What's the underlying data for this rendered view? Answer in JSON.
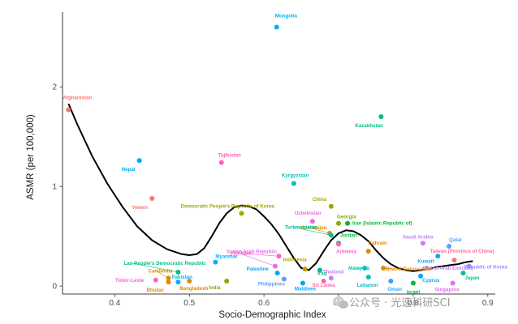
{
  "chart_data": {
    "type": "scatter",
    "xlabel": "Socio-Demographic Index",
    "ylabel": "ASMR (per 100,000)",
    "xlim": [
      0.33,
      0.91
    ],
    "ylim": [
      -0.08,
      2.75
    ],
    "x_ticks": [
      0.4,
      0.5,
      0.6,
      0.7,
      0.8,
      0.9
    ],
    "x_tick_labels": [
      "0.4",
      "0.5",
      "0.6",
      "0.7",
      "0.8",
      "0.9"
    ],
    "y_ticks": [
      0,
      1,
      2
    ],
    "y_tick_labels": [
      "0",
      "1",
      "2"
    ],
    "grid": false,
    "legend": "none",
    "points": [
      {
        "name": "Afghanistan",
        "x": 0.338,
        "y": 1.77,
        "color": "#F8766D"
      },
      {
        "name": "Mongolia",
        "x": 0.617,
        "y": 2.6,
        "color": "#00B0F6"
      },
      {
        "name": "Kazakhstan",
        "x": 0.757,
        "y": 1.7,
        "color": "#00BF7D"
      },
      {
        "name": "Nepal",
        "x": 0.433,
        "y": 1.26,
        "color": "#00A9FF"
      },
      {
        "name": "Tajikistan",
        "x": 0.543,
        "y": 1.24,
        "color": "#FF62BC"
      },
      {
        "name": "Kyrgyzstan",
        "x": 0.64,
        "y": 1.03,
        "color": "#00BFC4"
      },
      {
        "name": "Yemen",
        "x": 0.45,
        "y": 0.88,
        "color": "#F8766D"
      },
      {
        "name": "China",
        "x": 0.69,
        "y": 0.8,
        "color": "#A3A500"
      },
      {
        "name": "Democratic People's Republic of Korea",
        "x": 0.57,
        "y": 0.73,
        "color": "#A3A500"
      },
      {
        "name": "Uzbekistan",
        "x": 0.665,
        "y": 0.65,
        "color": "#F564E3"
      },
      {
        "name": "Georgia",
        "x": 0.7,
        "y": 0.63,
        "color": "#7CAE00"
      },
      {
        "name": "Iran (Islamic Republic of)",
        "x": 0.712,
        "y": 0.63,
        "color": "#00BA38"
      },
      {
        "name": "Azerbaijan",
        "x": 0.688,
        "y": 0.53,
        "color": "#E58700"
      },
      {
        "name": "Turkmenistan",
        "x": 0.69,
        "y": 0.51,
        "color": "#00C19F"
      },
      {
        "name": "Jordan",
        "x": 0.7,
        "y": 0.43,
        "color": "#00BA38"
      },
      {
        "name": "Saudi Arabia",
        "x": 0.813,
        "y": 0.43,
        "color": "#C77CFF"
      },
      {
        "name": "Qatar",
        "x": 0.848,
        "y": 0.4,
        "color": "#619CFF"
      },
      {
        "name": "Armenia",
        "x": 0.7,
        "y": 0.42,
        "color": "#FD61D1"
      },
      {
        "name": "Bahrain",
        "x": 0.74,
        "y": 0.35,
        "color": "#DE8C00"
      },
      {
        "name": "Viet Nam",
        "x": 0.62,
        "y": 0.3,
        "color": "#FF64B0"
      },
      {
        "name": "Syrian Arab Republic",
        "x": 0.615,
        "y": 0.2,
        "color": "#E76BF3"
      },
      {
        "name": "Kuwait",
        "x": 0.833,
        "y": 0.3,
        "color": "#00B0F6"
      },
      {
        "name": "Taiwan (Province of China)",
        "x": 0.855,
        "y": 0.26,
        "color": "#FF6C91"
      },
      {
        "name": "Indonesia",
        "x": 0.655,
        "y": 0.17,
        "color": "#B79F00"
      },
      {
        "name": "Iraq",
        "x": 0.675,
        "y": 0.16,
        "color": "#00BF7D"
      },
      {
        "name": "Malaysia",
        "x": 0.735,
        "y": 0.18,
        "color": "#00BFC4"
      },
      {
        "name": "Brunei Darussalam",
        "x": 0.76,
        "y": 0.18,
        "color": "#E58700"
      },
      {
        "name": "United Arab Emirates",
        "x": 0.818,
        "y": 0.18,
        "color": "#C77CFF"
      },
      {
        "name": "Republic of Korea",
        "x": 0.875,
        "y": 0.2,
        "color": "#9590FF"
      },
      {
        "name": "Lebanon",
        "x": 0.74,
        "y": 0.09,
        "color": "#00BFC4"
      },
      {
        "name": "Oman",
        "x": 0.77,
        "y": 0.05,
        "color": "#35A2FF"
      },
      {
        "name": "Israel",
        "x": 0.8,
        "y": 0.03,
        "color": "#00BA38"
      },
      {
        "name": "Cyprus",
        "x": 0.81,
        "y": 0.1,
        "color": "#00A9FF"
      },
      {
        "name": "Singapore",
        "x": 0.853,
        "y": 0.03,
        "color": "#E76BF3"
      },
      {
        "name": "Japan",
        "x": 0.867,
        "y": 0.13,
        "color": "#00C08B"
      },
      {
        "name": "Lao People's Democratic Republic",
        "x": 0.485,
        "y": 0.14,
        "color": "#00BF7D"
      },
      {
        "name": "Myanmar",
        "x": 0.535,
        "y": 0.24,
        "color": "#00B0F6"
      },
      {
        "name": "Cambodia",
        "x": 0.472,
        "y": 0.08,
        "color": "#E58700"
      },
      {
        "name": "Timor-Leste",
        "x": 0.455,
        "y": 0.06,
        "color": "#FF62BC"
      },
      {
        "name": "Pakistan",
        "x": 0.485,
        "y": 0.04,
        "color": "#00B0F6"
      },
      {
        "name": "Bhutan",
        "x": 0.472,
        "y": 0.04,
        "color": "#DE8C00"
      },
      {
        "name": "Bangladesh",
        "x": 0.5,
        "y": 0.05,
        "color": "#E58700"
      },
      {
        "name": "India",
        "x": 0.55,
        "y": 0.05,
        "color": "#7CAE00"
      },
      {
        "name": "Palestine",
        "x": 0.618,
        "y": 0.13,
        "color": "#00A9FF"
      },
      {
        "name": "Philippines",
        "x": 0.627,
        "y": 0.07,
        "color": "#619CFF"
      },
      {
        "name": "Maldives",
        "x": 0.652,
        "y": 0.03,
        "color": "#00A9FF"
      },
      {
        "name": "Thailand",
        "x": 0.69,
        "y": 0.08,
        "color": "#C77CFF"
      },
      {
        "name": "Sri Lanka",
        "x": 0.68,
        "y": 0.05,
        "color": "#FF64B0"
      }
    ],
    "smooth_line": {
      "color": "#000000",
      "x": [
        0.338,
        0.35,
        0.37,
        0.39,
        0.41,
        0.43,
        0.45,
        0.47,
        0.49,
        0.5,
        0.51,
        0.52,
        0.53,
        0.54,
        0.55,
        0.56,
        0.57,
        0.58,
        0.59,
        0.6,
        0.61,
        0.62,
        0.63,
        0.64,
        0.65,
        0.66,
        0.67,
        0.68,
        0.69,
        0.7,
        0.71,
        0.72,
        0.73,
        0.74,
        0.75,
        0.76,
        0.77,
        0.78,
        0.79,
        0.8,
        0.81,
        0.82,
        0.83,
        0.84,
        0.85,
        0.86,
        0.87,
        0.88
      ],
      "y": [
        1.83,
        1.62,
        1.3,
        1.03,
        0.8,
        0.6,
        0.46,
        0.37,
        0.32,
        0.31,
        0.32,
        0.38,
        0.5,
        0.63,
        0.73,
        0.79,
        0.81,
        0.8,
        0.77,
        0.7,
        0.62,
        0.52,
        0.4,
        0.28,
        0.18,
        0.16,
        0.23,
        0.35,
        0.46,
        0.53,
        0.56,
        0.55,
        0.51,
        0.45,
        0.36,
        0.28,
        0.22,
        0.18,
        0.16,
        0.15,
        0.16,
        0.17,
        0.19,
        0.2,
        0.21,
        0.22,
        0.24,
        0.25
      ]
    }
  },
  "watermark": {
    "text": "公众号 · 光速科研SCI",
    "icon": "wechat-icon"
  }
}
